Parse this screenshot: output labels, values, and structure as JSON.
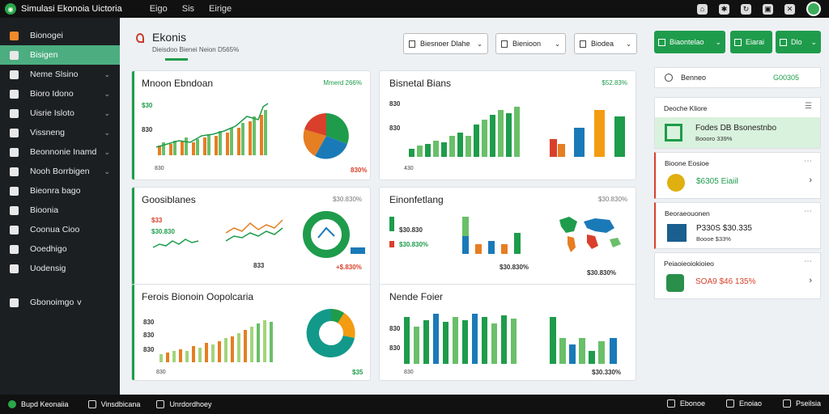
{
  "app": {
    "title": "Simulasi Ekonoia Uictoria",
    "menu": [
      "Eigo",
      "Sis",
      "Eirige"
    ]
  },
  "sidebar": {
    "items": [
      {
        "label": "Bionogei",
        "chev": false
      },
      {
        "label": "Bisigen",
        "chev": false,
        "active": true
      },
      {
        "label": "Neme Slsino",
        "chev": true
      },
      {
        "label": "Bioro Idono",
        "chev": true
      },
      {
        "label": "Uisrie Isloto",
        "chev": true
      },
      {
        "label": "Vissneng",
        "chev": true
      },
      {
        "label": "Beonnonie Inamd",
        "chev": true
      },
      {
        "label": "Nooh Borrbigen",
        "chev": true
      },
      {
        "label": "Bieonra bago",
        "chev": false
      },
      {
        "label": "Bioonia",
        "chev": false
      },
      {
        "label": "Coonua Cioo",
        "chev": false
      },
      {
        "label": "Ooedhigo",
        "chev": false
      },
      {
        "label": "Uodensig",
        "chev": false
      }
    ],
    "footer_item": {
      "label": "Gbonoimgo",
      "chev": "v"
    }
  },
  "header": {
    "title": "Ekonis",
    "subtitle": "Dieisdoo Bienei  Neion D565%",
    "dropdowns": [
      "Biesnoer Dlahe",
      "Bienioon",
      "Biodea"
    ]
  },
  "cards": [
    {
      "title": "Mnoon Ebndoan",
      "stat": "Mmerd 266%",
      "axis": [
        "830",
        "$30",
        "830"
      ],
      "value": "830%"
    },
    {
      "title": "Bisnetal Bians",
      "stat": "$52.83%",
      "axis": [
        "830",
        "830",
        "430"
      ],
      "value": ""
    },
    {
      "title": "Goosiblanes",
      "stat": "$30.830%",
      "axis": [
        "$33",
        "$30",
        "833"
      ],
      "value_a": "$30.830",
      "value_b": "+$.830%"
    },
    {
      "title": "Einonfetlang",
      "stat": "$30.830%",
      "axis": [],
      "value_a": "$30.830",
      "value_b": "$30.830%",
      "value_c": "$30.830%"
    },
    {
      "title": "Ferois Bionoin Oopolcaria",
      "stat": "",
      "axis": [
        "830",
        "830",
        "830",
        "830"
      ],
      "value": "$35"
    },
    {
      "title": "Nende Foier",
      "stat": "",
      "axis": [
        "830",
        "830",
        "830"
      ],
      "value": "$30.330%"
    }
  ],
  "right_panel": {
    "buttons": [
      "Biaontelao",
      "Eiarai",
      "Dlo"
    ],
    "stat": {
      "label": "Benneo",
      "value": "G00305"
    },
    "cards": [
      {
        "header": "Deoche Kliore",
        "value": "Fodes DB Bsonestnbo",
        "sub": "Boooro 339%"
      },
      {
        "header": "Bioone Eosioe",
        "value": "$6305 Eiaiil",
        "sub": ""
      },
      {
        "header": "Beoraeouonen",
        "value": "P330S $30.335",
        "sub": "Boooe $33%"
      },
      {
        "header": "Peiaoieoiokioieo",
        "value": "SOA9 $46 135%",
        "sub": ""
      }
    ]
  },
  "bottombar": {
    "items": [
      "Bupd Keonaiia",
      "Vinsdbicana",
      "Unrdordhoey"
    ],
    "right": [
      "Ebonoe",
      "Enoiao",
      "Pseilsia"
    ]
  },
  "colors": {
    "accent": "#1e9c4b",
    "orange": "#e67e22",
    "blue": "#1a7ab8",
    "red": "#d9402b",
    "sidebar": "#1c1f22",
    "active": "#4cae80"
  }
}
